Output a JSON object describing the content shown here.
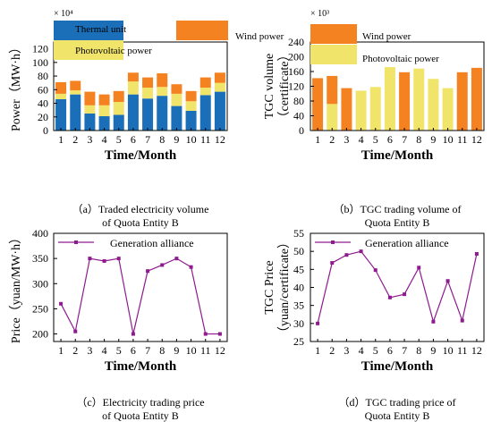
{
  "colors": {
    "thermal": "#1a6fb8",
    "wind": "#f58220",
    "pv": "#f0e46a",
    "line": "#8e1b8e",
    "axis": "#000000",
    "background": "#ffffff"
  },
  "chart_data": [
    {
      "type": "bar",
      "stacked": true,
      "caption": "（a）Traded electricity volume of Quota Entity B",
      "caption_lines": [
        "（a）Traded electricity volume",
        "of Quota Entity B"
      ],
      "xlabel": "Time/Month",
      "ylabel": "Power（MW·h）",
      "multiplier": "× 10⁴",
      "ylim": [
        0,
        130
      ],
      "yticks": [
        0,
        20,
        40,
        60,
        80,
        100,
        120
      ],
      "categories": [
        "1",
        "2",
        "3",
        "4",
        "5",
        "6",
        "7",
        "8",
        "9",
        "10",
        "11",
        "12"
      ],
      "legend_position": "top",
      "grid": false,
      "series": [
        {
          "name": "Thermal unit",
          "color_key": "thermal",
          "values": [
            46,
            53,
            25,
            21,
            23,
            53,
            47,
            51,
            36,
            29,
            52,
            57
          ]
        },
        {
          "name": "Photovoltaic power",
          "color_key": "pv",
          "values": [
            8,
            6,
            12,
            16,
            19,
            19,
            16,
            13,
            18,
            14,
            11,
            13
          ]
        },
        {
          "name": "Wind power",
          "color_key": "wind",
          "values": [
            17,
            14,
            20,
            16,
            16,
            13,
            15,
            20,
            14,
            15,
            15,
            15
          ]
        }
      ]
    },
    {
      "type": "bar",
      "stacked": true,
      "caption": "（b）TGC trading volume of Quota Entity B",
      "caption_lines": [
        "（b）TGC trading volume of",
        "Quota Entity B"
      ],
      "xlabel": "Time/Month",
      "ylabel": "TGC volume（certificate）",
      "ylabel_lines": [
        "TGC volume",
        "（certificate）"
      ],
      "multiplier": "× 10³",
      "ylim": [
        0,
        240
      ],
      "yticks": [
        0,
        40,
        80,
        120,
        160,
        200,
        240
      ],
      "categories": [
        "1",
        "2",
        "3",
        "4",
        "5",
        "6",
        "7",
        "8",
        "9",
        "10",
        "11",
        "12"
      ],
      "legend_position": "top",
      "grid": false,
      "series": [
        {
          "name": "Photovoltaic power",
          "color_key": "pv",
          "values": [
            0,
            72,
            0,
            108,
            118,
            172,
            0,
            168,
            140,
            115,
            0,
            0
          ]
        },
        {
          "name": "Wind power",
          "color_key": "wind",
          "values": [
            142,
            76,
            115,
            0,
            0,
            0,
            158,
            0,
            0,
            0,
            158,
            170
          ]
        }
      ]
    },
    {
      "type": "line",
      "caption": "（c）Electricity trading price of Quota Entity B",
      "caption_lines": [
        "（c）Electricity trading price",
        "of Quota Entity B"
      ],
      "xlabel": "Time/Month",
      "ylabel": "Price（yuan/MW·h）",
      "ylim": [
        185,
        400
      ],
      "yticks": [
        200,
        250,
        300,
        350,
        400
      ],
      "x": [
        1,
        2,
        3,
        4,
        5,
        6,
        7,
        8,
        9,
        10,
        11,
        12
      ],
      "legend_position": "top",
      "grid": false,
      "series": [
        {
          "name": "Generation alliance",
          "color_key": "line",
          "values": [
            260,
            205,
            350,
            345,
            350,
            200,
            325,
            337,
            350,
            333,
            200,
            200
          ]
        }
      ]
    },
    {
      "type": "line",
      "caption": "（d）TGC trading price of Quota Entity B",
      "caption_lines": [
        "（d）TGC trading price of",
        "Quota Entity B"
      ],
      "xlabel": "Time/Month",
      "ylabel": "TGC Price（yuan/certificate）",
      "ylabel_lines": [
        "TGC Price",
        "（yuan/certificate）"
      ],
      "ylim": [
        25,
        55
      ],
      "yticks": [
        25,
        30,
        35,
        40,
        45,
        50,
        55
      ],
      "x": [
        1,
        2,
        3,
        4,
        5,
        6,
        7,
        8,
        9,
        10,
        11,
        12
      ],
      "legend_position": "top",
      "grid": false,
      "series": [
        {
          "name": "Generation alliance",
          "color_key": "line",
          "values": [
            30,
            46.8,
            49,
            50,
            44.8,
            37.2,
            38.1,
            45.5,
            30.5,
            41.8,
            30.8,
            49.3
          ]
        }
      ]
    }
  ]
}
